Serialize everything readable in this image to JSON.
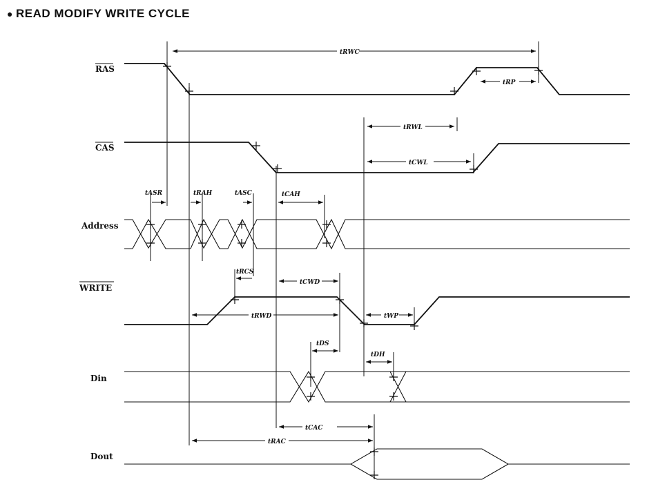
{
  "title": "READ MODIFY WRITE CYCLE",
  "signals": {
    "ras": "RAS",
    "cas": "CAS",
    "address": "Address",
    "write": "WRITE",
    "din": "Din",
    "dout": "Dout"
  },
  "timings": {
    "trwc": "tRWC",
    "trp": "tRP",
    "trwl": "tRWL",
    "tcwl": "tCWL",
    "tasr": "tASR",
    "trah": "tRAH",
    "tasc": "tASC",
    "tcah": "tCAH",
    "trcs": "tRCS",
    "tcwd": "tCWD",
    "trwd": "tRWD",
    "twp": "tWP",
    "tds": "tDS",
    "tdh": "tDH",
    "tcac": "tCAC",
    "trac": "tRAC"
  }
}
